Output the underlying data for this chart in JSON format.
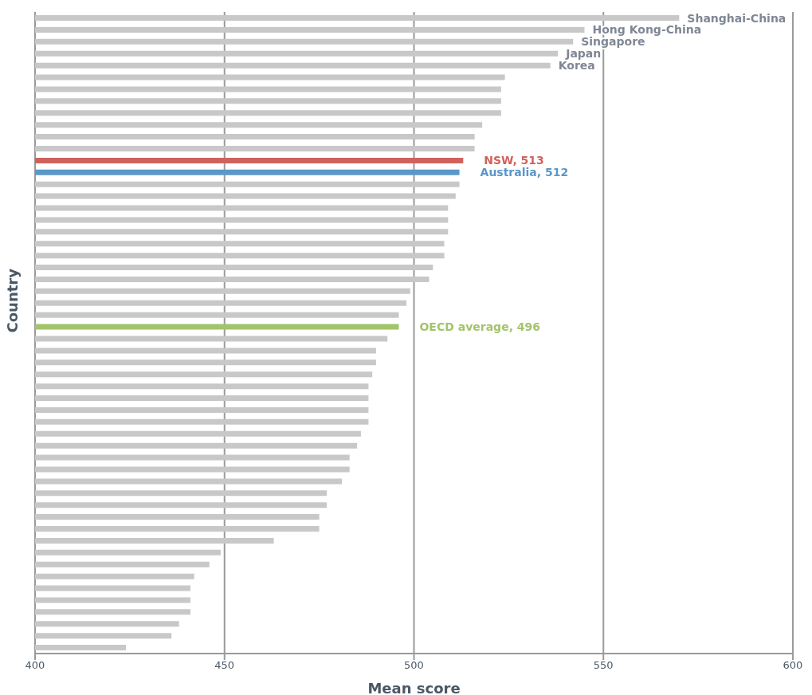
{
  "chart_data": {
    "type": "bar",
    "orientation": "horizontal",
    "xlabel": "Mean score",
    "ylabel": "Country",
    "categories": [
      "Shanghai-China",
      "Hong Kong-China",
      "Singapore",
      "Japan",
      "Korea",
      null,
      null,
      null,
      null,
      null,
      null,
      null,
      null,
      null,
      null,
      null,
      null,
      null,
      null,
      null,
      null,
      null,
      null,
      null,
      null,
      null,
      null,
      null,
      null,
      null,
      null,
      null,
      null,
      null,
      null,
      null,
      null,
      null,
      null,
      null,
      null,
      null,
      null,
      null,
      null,
      null,
      null,
      null,
      null,
      null,
      null,
      null,
      null,
      null
    ],
    "values": [
      570,
      545,
      542,
      538,
      536,
      524,
      523,
      523,
      523,
      518,
      516,
      516,
      513,
      512,
      512,
      511,
      509,
      509,
      509,
      508,
      508,
      505,
      504,
      499,
      498,
      496,
      496,
      493,
      490,
      490,
      489,
      488,
      488,
      488,
      488,
      486,
      485,
      483,
      483,
      481,
      477,
      477,
      475,
      475,
      463,
      449,
      446,
      442,
      441,
      441,
      441,
      438,
      436,
      424
    ],
    "value_labels": [
      null,
      null,
      null,
      null,
      null,
      null,
      null,
      null,
      null,
      null,
      null,
      null,
      "NSW, 513",
      "Australia, 512",
      null,
      null,
      null,
      null,
      null,
      null,
      null,
      null,
      null,
      null,
      null,
      null,
      "OECD average, 496",
      null,
      null,
      null,
      null,
      null,
      null,
      null,
      null,
      null,
      null,
      null,
      null,
      null,
      null,
      null,
      null,
      null,
      null,
      null,
      null,
      null,
      null,
      null,
      null,
      null,
      null,
      null
    ],
    "colors": [
      "#c8c8c8",
      "#c8c8c8",
      "#c8c8c8",
      "#c8c8c8",
      "#c8c8c8",
      "#c8c8c8",
      "#c8c8c8",
      "#c8c8c8",
      "#c8c8c8",
      "#c8c8c8",
      "#c8c8c8",
      "#c8c8c8",
      "#d0625c",
      "#5b97c9",
      "#c8c8c8",
      "#c8c8c8",
      "#c8c8c8",
      "#c8c8c8",
      "#c8c8c8",
      "#c8c8c8",
      "#c8c8c8",
      "#c8c8c8",
      "#c8c8c8",
      "#c8c8c8",
      "#c8c8c8",
      "#c8c8c8",
      "#a3c46a",
      "#c8c8c8",
      "#c8c8c8",
      "#c8c8c8",
      "#c8c8c8",
      "#c8c8c8",
      "#c8c8c8",
      "#c8c8c8",
      "#c8c8c8",
      "#c8c8c8",
      "#c8c8c8",
      "#c8c8c8",
      "#c8c8c8",
      "#c8c8c8",
      "#c8c8c8",
      "#c8c8c8",
      "#c8c8c8",
      "#c8c8c8",
      "#c8c8c8",
      "#c8c8c8",
      "#c8c8c8",
      "#c8c8c8",
      "#c8c8c8",
      "#c8c8c8",
      "#c8c8c8",
      "#c8c8c8",
      "#c8c8c8",
      "#c8c8c8"
    ],
    "xlim": [
      400,
      600
    ],
    "xticks": [
      400,
      450,
      500,
      550,
      600
    ],
    "grid": "x",
    "tick_labels": "x",
    "legend": false
  }
}
